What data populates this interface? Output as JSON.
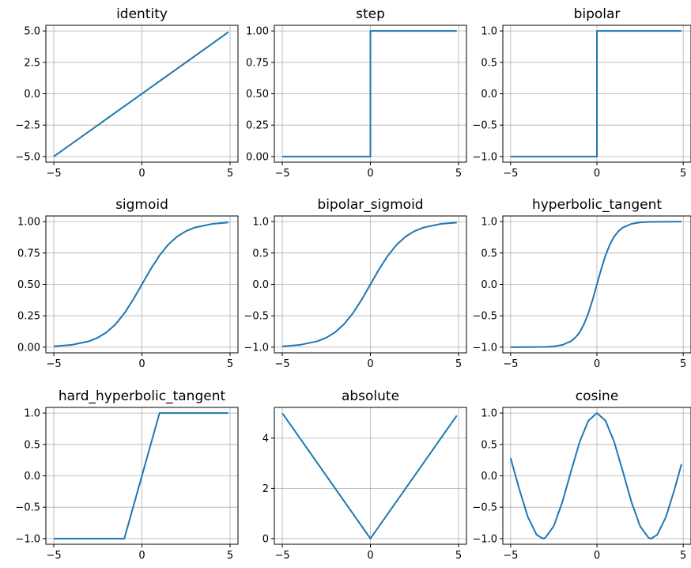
{
  "style": {
    "line_color": "#1f77b4",
    "grid_color": "#b0b0b0",
    "axis_color": "#000000"
  },
  "chart_data": [
    {
      "type": "line",
      "title": "identity",
      "xlabel": "",
      "ylabel": "",
      "xlim": [
        -5,
        5
      ],
      "ylim": [
        -5,
        5
      ],
      "grid": true,
      "xticks": [
        "−5",
        "0",
        "5"
      ],
      "yticks": [
        "−5.0",
        "−2.5",
        "0.0",
        "2.5",
        "5.0"
      ],
      "series": [
        {
          "x": [
            -5,
            4.9
          ],
          "y": [
            -5,
            4.9
          ]
        }
      ]
    },
    {
      "type": "line",
      "title": "step",
      "xlabel": "",
      "ylabel": "",
      "xlim": [
        -5,
        5
      ],
      "ylim": [
        0,
        1
      ],
      "grid": true,
      "xticks": [
        "−5",
        "0",
        "5"
      ],
      "yticks": [
        "0.00",
        "0.25",
        "0.50",
        "0.75",
        "1.00"
      ],
      "series": [
        {
          "x": [
            -5,
            0,
            0,
            4.9
          ],
          "y": [
            0,
            0,
            1,
            1
          ]
        }
      ]
    },
    {
      "type": "line",
      "title": "bipolar",
      "xlabel": "",
      "ylabel": "",
      "xlim": [
        -5,
        5
      ],
      "ylim": [
        -1,
        1
      ],
      "grid": true,
      "xticks": [
        "−5",
        "0",
        "5"
      ],
      "yticks": [
        "−1.0",
        "−0.5",
        "0.0",
        "0.5",
        "1.0"
      ],
      "series": [
        {
          "x": [
            -5,
            0,
            0,
            4.9
          ],
          "y": [
            -1,
            -1,
            1,
            1
          ]
        }
      ]
    },
    {
      "type": "line",
      "title": "sigmoid",
      "xlabel": "",
      "ylabel": "",
      "xlim": [
        -5,
        5
      ],
      "ylim": [
        0,
        1
      ],
      "grid": true,
      "xticks": [
        "−5",
        "0",
        "5"
      ],
      "yticks": [
        "0.00",
        "0.25",
        "0.50",
        "0.75",
        "1.00"
      ],
      "series": [
        {
          "x": [
            -5,
            -4,
            -3,
            -2.5,
            -2,
            -1.5,
            -1,
            -0.5,
            0,
            0.5,
            1,
            1.5,
            2,
            2.5,
            3,
            4,
            4.9
          ],
          "y": [
            0.007,
            0.018,
            0.047,
            0.076,
            0.119,
            0.182,
            0.269,
            0.378,
            0.5,
            0.622,
            0.731,
            0.818,
            0.881,
            0.924,
            0.953,
            0.982,
            0.993
          ]
        }
      ]
    },
    {
      "type": "line",
      "title": "bipolar_sigmoid",
      "xlabel": "",
      "ylabel": "",
      "xlim": [
        -5,
        5
      ],
      "ylim": [
        -1,
        1
      ],
      "grid": true,
      "xticks": [
        "−5",
        "0",
        "5"
      ],
      "yticks": [
        "−1.0",
        "−0.5",
        "0.0",
        "0.5",
        "1.0"
      ],
      "series": [
        {
          "x": [
            -5,
            -4,
            -3,
            -2.5,
            -2,
            -1.5,
            -1,
            -0.5,
            0,
            0.5,
            1,
            1.5,
            2,
            2.5,
            3,
            4,
            4.9
          ],
          "y": [
            -0.987,
            -0.964,
            -0.905,
            -0.848,
            -0.762,
            -0.635,
            -0.462,
            -0.245,
            0,
            0.245,
            0.462,
            0.635,
            0.762,
            0.848,
            0.905,
            0.964,
            0.985
          ]
        }
      ]
    },
    {
      "type": "line",
      "title": "hyperbolic_tangent",
      "xlabel": "",
      "ylabel": "",
      "xlim": [
        -5,
        5
      ],
      "ylim": [
        -1,
        1
      ],
      "grid": true,
      "xticks": [
        "−5",
        "0",
        "5"
      ],
      "yticks": [
        "−1.0",
        "−0.5",
        "0.0",
        "0.5",
        "1.0"
      ],
      "series": [
        {
          "x": [
            -5,
            -3,
            -2.5,
            -2,
            -1.5,
            -1.25,
            -1,
            -0.75,
            -0.5,
            -0.25,
            0,
            0.25,
            0.5,
            0.75,
            1,
            1.25,
            1.5,
            2,
            2.5,
            3,
            4.9
          ],
          "y": [
            -1,
            -0.995,
            -0.987,
            -0.964,
            -0.905,
            -0.848,
            -0.762,
            -0.635,
            -0.462,
            -0.245,
            0,
            0.245,
            0.462,
            0.635,
            0.762,
            0.848,
            0.905,
            0.964,
            0.987,
            0.995,
            1
          ]
        }
      ]
    },
    {
      "type": "line",
      "title": "hard_hyperbolic_tangent",
      "xlabel": "",
      "ylabel": "",
      "xlim": [
        -5,
        5
      ],
      "ylim": [
        -1,
        1
      ],
      "grid": true,
      "xticks": [
        "−5",
        "0",
        "5"
      ],
      "yticks": [
        "−1.0",
        "−0.5",
        "0.0",
        "0.5",
        "1.0"
      ],
      "series": [
        {
          "x": [
            -5,
            -1,
            1,
            4.9
          ],
          "y": [
            -1,
            -1,
            1,
            1
          ]
        }
      ]
    },
    {
      "type": "line",
      "title": "absolute",
      "xlabel": "",
      "ylabel": "",
      "xlim": [
        -5,
        5
      ],
      "ylim": [
        0,
        5
      ],
      "grid": true,
      "xticks": [
        "−5",
        "0",
        "5"
      ],
      "yticks": [
        "0",
        "2",
        "4"
      ],
      "series": [
        {
          "x": [
            -5,
            0,
            4.9
          ],
          "y": [
            5,
            0,
            4.9
          ]
        }
      ]
    },
    {
      "type": "line",
      "title": "cosine",
      "xlabel": "",
      "ylabel": "",
      "xlim": [
        -5,
        5
      ],
      "ylim": [
        -1,
        1
      ],
      "grid": true,
      "xticks": [
        "−5",
        "0",
        "5"
      ],
      "yticks": [
        "−1.0",
        "−0.5",
        "0.0",
        "0.5",
        "1.0"
      ],
      "series": [
        {
          "x": [
            -5,
            -4.5,
            -4,
            -3.5,
            -3.14,
            -3,
            -2.5,
            -2,
            -1.5,
            -1,
            -0.5,
            0,
            0.5,
            1,
            1.5,
            2,
            2.5,
            3,
            3.14,
            3.5,
            4,
            4.5,
            4.9
          ],
          "y": [
            0.284,
            -0.211,
            -0.654,
            -0.936,
            -1,
            -0.99,
            -0.801,
            -0.416,
            0.071,
            0.54,
            0.878,
            1,
            0.878,
            0.54,
            0.071,
            -0.416,
            -0.801,
            -0.99,
            -1,
            -0.936,
            -0.654,
            -0.211,
            0.187
          ]
        }
      ]
    }
  ]
}
